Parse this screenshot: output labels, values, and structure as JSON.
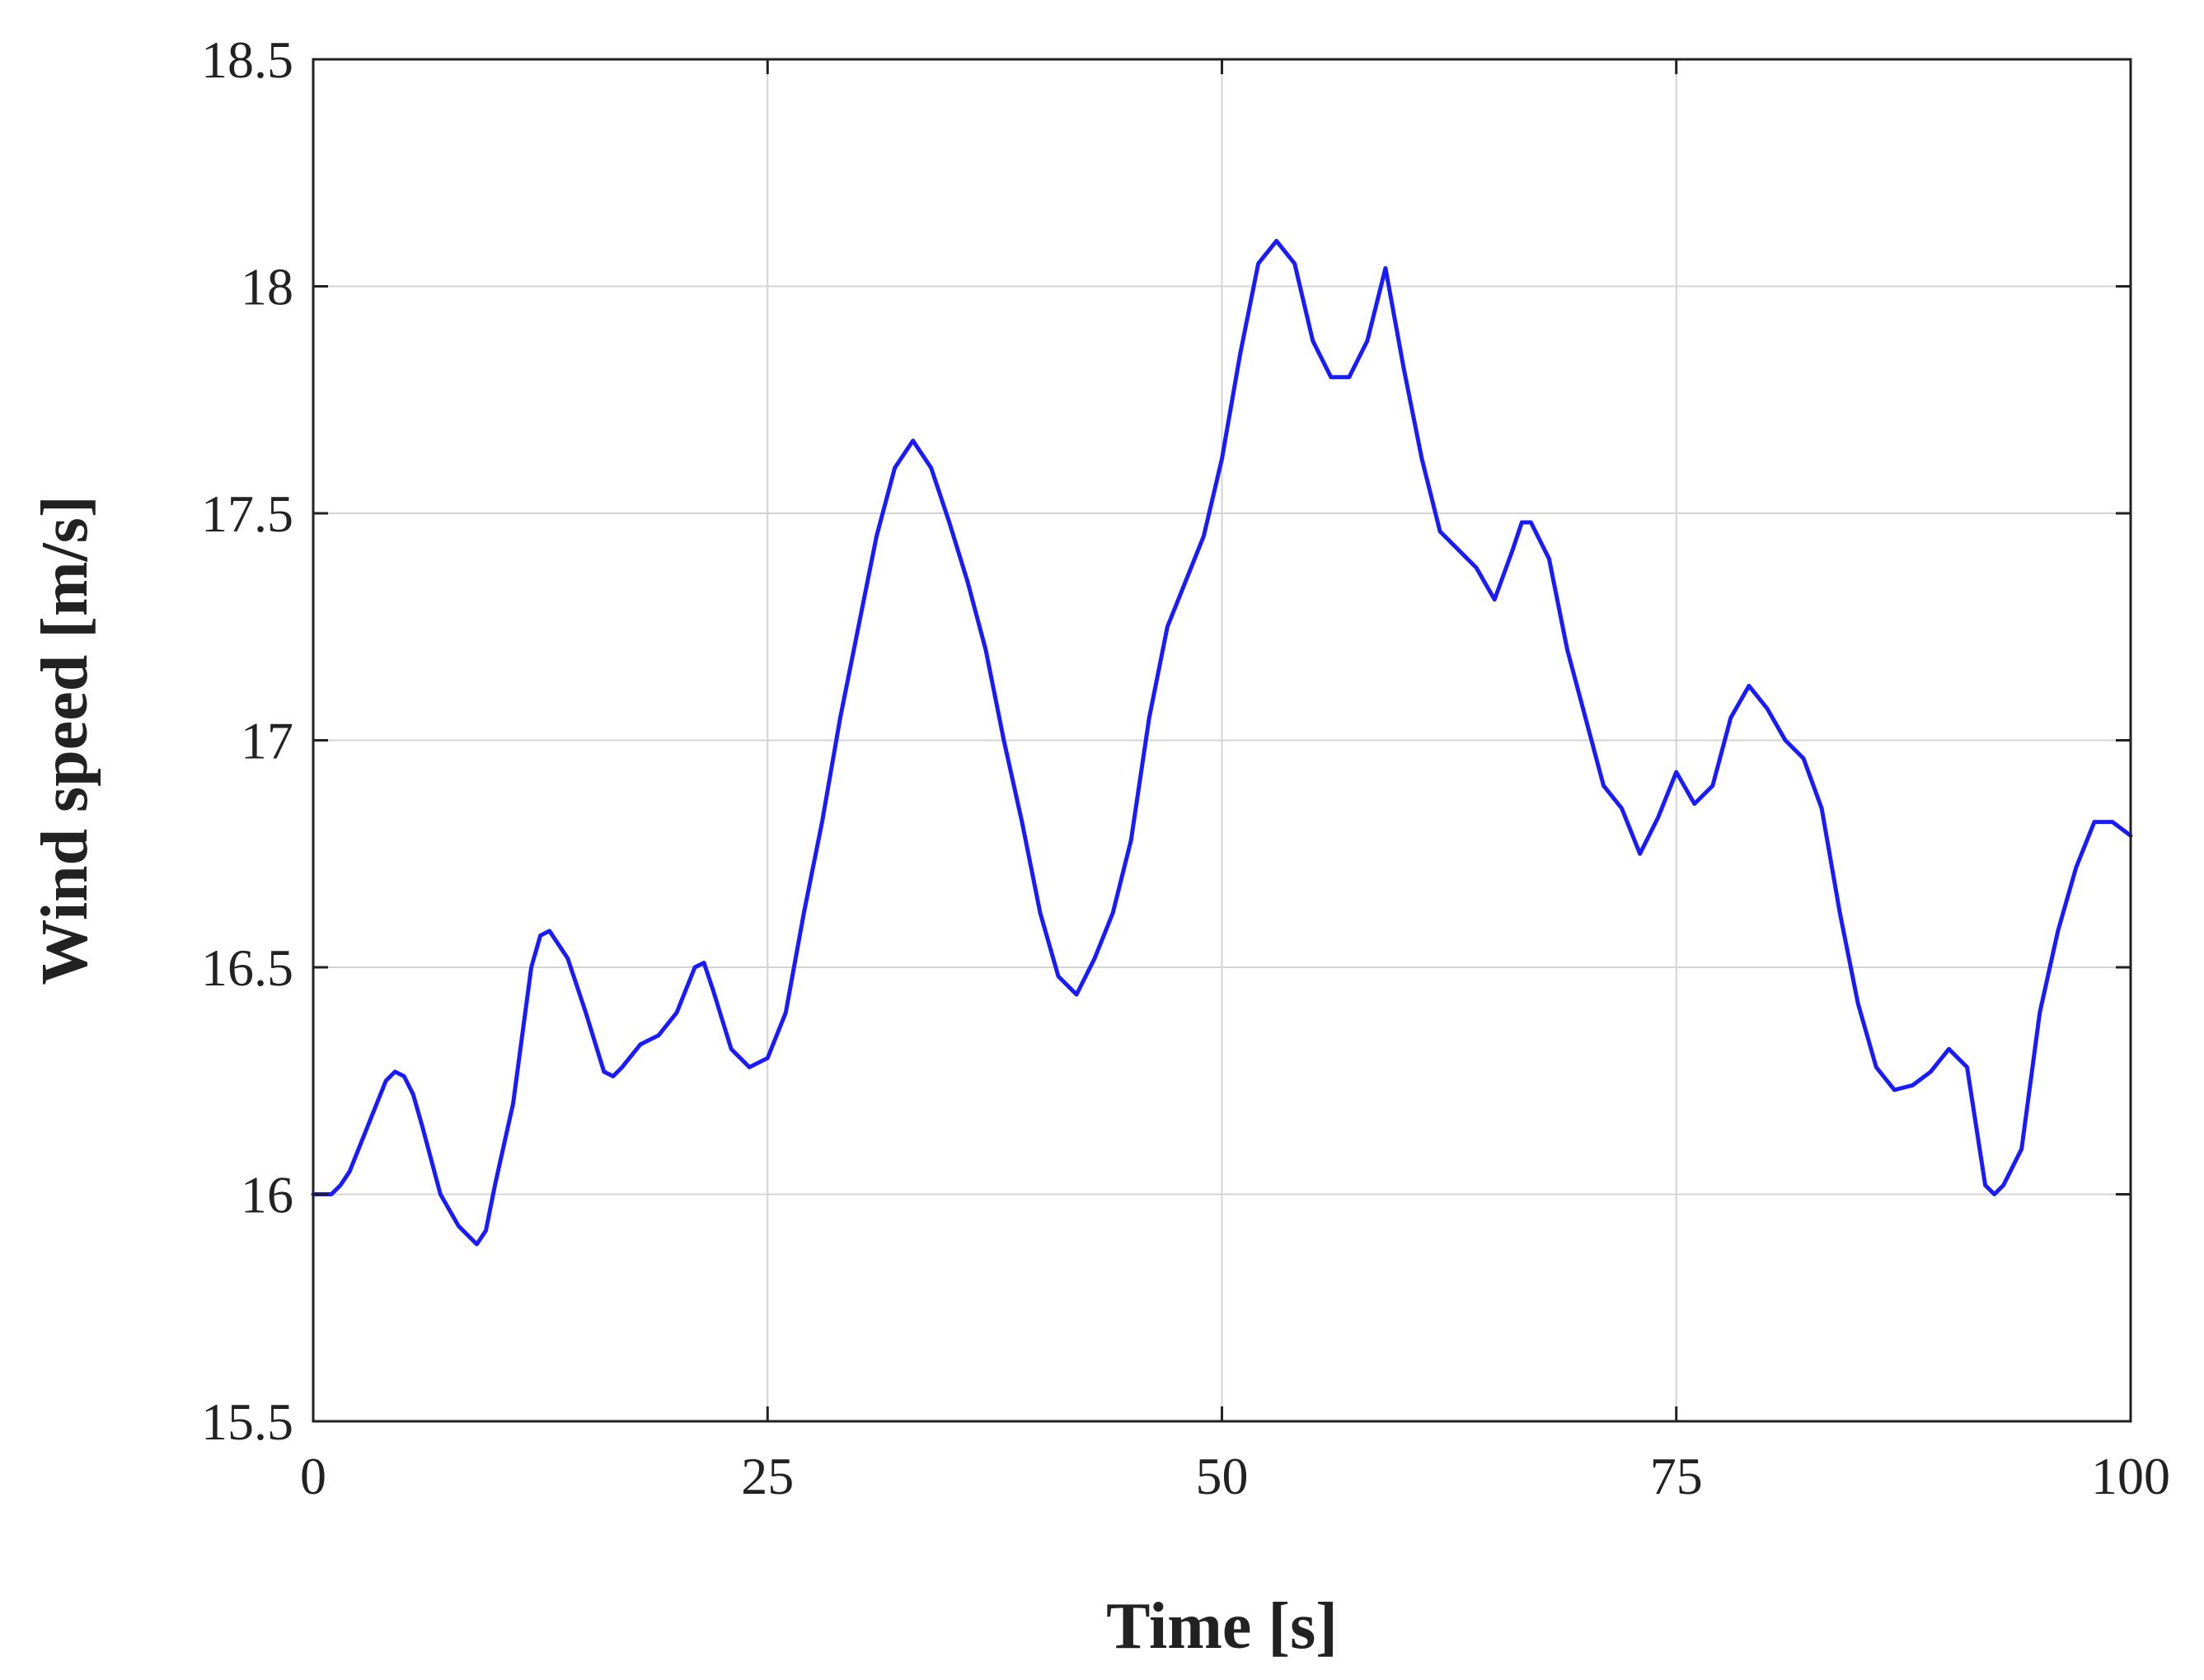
{
  "chart_data": {
    "type": "line",
    "title": "",
    "xlabel": "Time [s]",
    "ylabel": "Wind speed [m/s]",
    "xlim": [
      0,
      100
    ],
    "ylim": [
      15.5,
      18.5
    ],
    "x_ticks": [
      0,
      25,
      50,
      75,
      100
    ],
    "y_ticks": [
      15.5,
      16,
      16.5,
      17,
      17.5,
      18,
      18.5
    ],
    "x_tick_labels": [
      "0",
      "25",
      "50",
      "75",
      "100"
    ],
    "y_tick_labels": [
      "15.5",
      "16",
      "16.5",
      "17",
      "17.5",
      "18",
      "18.5"
    ],
    "grid": true,
    "series": [
      {
        "color": "#1a1aff",
        "x": [
          0,
          1,
          1.5,
          2,
          3,
          4,
          4.5,
          5,
          5.5,
          6,
          7,
          8,
          9,
          9.5,
          10,
          11,
          12,
          12.5,
          13,
          14,
          15,
          16,
          16.5,
          17,
          18,
          19,
          20,
          21,
          21.5,
          22,
          23,
          24,
          25,
          26,
          27,
          28,
          29,
          30,
          31,
          32,
          33,
          34,
          35,
          36,
          37,
          38,
          39,
          40,
          41,
          42,
          43,
          44,
          45,
          46,
          47,
          48,
          49,
          50,
          51,
          52,
          53,
          54,
          55,
          56,
          57,
          58,
          59,
          60,
          61,
          62,
          63,
          64,
          65,
          66,
          66.5,
          67,
          68,
          69,
          70,
          71,
          72,
          73,
          74,
          75,
          76,
          77,
          78,
          79,
          80,
          81,
          82,
          83,
          84,
          85,
          86,
          87,
          88,
          89,
          90,
          91,
          92,
          92.5,
          93,
          94,
          95,
          96,
          97,
          98,
          99,
          100
        ],
        "y": [
          16.0,
          16.0,
          16.02,
          16.05,
          16.15,
          16.25,
          16.27,
          16.26,
          16.22,
          16.15,
          16.0,
          15.93,
          15.89,
          15.92,
          16.02,
          16.2,
          16.5,
          16.57,
          16.58,
          16.52,
          16.4,
          16.27,
          16.26,
          16.28,
          16.33,
          16.35,
          16.4,
          16.5,
          16.51,
          16.45,
          16.32,
          16.28,
          16.3,
          16.4,
          16.62,
          16.82,
          17.05,
          17.25,
          17.45,
          17.6,
          17.66,
          17.6,
          17.48,
          17.35,
          17.2,
          17.0,
          16.82,
          16.62,
          16.48,
          16.44,
          16.52,
          16.62,
          16.78,
          17.05,
          17.25,
          17.35,
          17.45,
          17.62,
          17.85,
          18.05,
          18.1,
          18.05,
          17.88,
          17.8,
          17.8,
          17.88,
          18.04,
          17.82,
          17.62,
          17.46,
          17.42,
          17.38,
          17.31,
          17.42,
          17.48,
          17.48,
          17.4,
          17.2,
          17.05,
          16.9,
          16.85,
          16.75,
          16.83,
          16.93,
          16.86,
          16.9,
          17.05,
          17.12,
          17.07,
          17.0,
          16.96,
          16.85,
          16.62,
          16.42,
          16.28,
          16.23,
          16.24,
          16.27,
          16.32,
          16.28,
          16.02,
          16.0,
          16.02,
          16.1,
          16.4,
          16.58,
          16.72,
          16.82,
          16.82,
          16.79
        ]
      }
    ]
  }
}
